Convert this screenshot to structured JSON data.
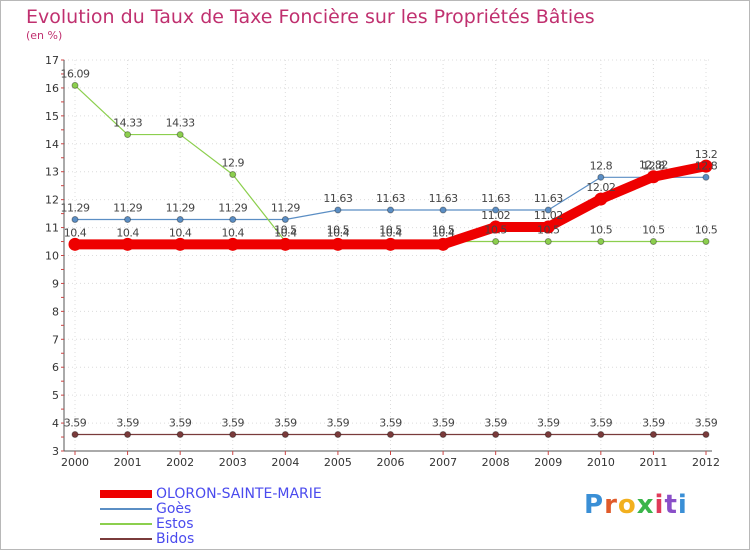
{
  "chart_data": {
    "type": "line",
    "title": "Evolution du Taux de Taxe Foncière sur les Propriétés Bâties",
    "ylabel": "(en %)",
    "xlabel": "",
    "ylim": [
      3,
      17
    ],
    "yticks": [
      3,
      4,
      5,
      6,
      7,
      8,
      9,
      10,
      11,
      12,
      13,
      14,
      15,
      16,
      17
    ],
    "categories": [
      "2000",
      "2001",
      "2002",
      "2003",
      "2004",
      "2005",
      "2006",
      "2007",
      "2008",
      "2009",
      "2010",
      "2011",
      "2012"
    ],
    "series": [
      {
        "name": "Goès",
        "color": "#5b8ec4",
        "values": [
          11.29,
          11.29,
          11.29,
          11.29,
          11.29,
          11.63,
          11.63,
          11.63,
          11.63,
          11.63,
          12.8,
          12.8,
          12.8
        ],
        "labels": [
          "11.29",
          "11.29",
          "11.29",
          "11.29",
          "11.29",
          "11.63",
          "11.63",
          "11.63",
          "11.63",
          "11.63",
          "12.8",
          "12.8",
          "12.8"
        ]
      },
      {
        "name": "Estos",
        "color": "#8ccf4e",
        "values": [
          16.09,
          14.33,
          14.33,
          12.9,
          10.5,
          10.5,
          10.5,
          10.5,
          10.5,
          10.5,
          10.5,
          10.5,
          10.5
        ],
        "labels": [
          "16.09",
          "14.33",
          "14.33",
          "12.9",
          "10.5",
          "10.5",
          "10.5",
          "10.5",
          "10.5",
          "10.5",
          "10.5",
          "10.5",
          "10.5"
        ]
      },
      {
        "name": "Bidos",
        "color": "#7a3b3b",
        "values": [
          3.59,
          3.59,
          3.59,
          3.59,
          3.59,
          3.59,
          3.59,
          3.59,
          3.59,
          3.59,
          3.59,
          3.59,
          3.59
        ],
        "labels": [
          "3.59",
          "3.59",
          "3.59",
          "3.59",
          "3.59",
          "3.59",
          "3.59",
          "3.59",
          "3.59",
          "3.59",
          "3.59",
          "3.59",
          "3.59"
        ]
      },
      {
        "name": "OLORON-SAINTE-MARIE",
        "color": "#ee0000",
        "values": [
          10.4,
          10.4,
          10.4,
          10.4,
          10.4,
          10.4,
          10.4,
          10.4,
          11.02,
          11.02,
          12.02,
          12.82,
          13.2
        ],
        "labels": [
          "10.4",
          "10.4",
          "10.4",
          "10.4",
          "10.4",
          "10.4",
          "10.4",
          "10.4",
          "11.02",
          "11.02",
          "12.02",
          "12.82",
          "13.2"
        ]
      }
    ],
    "legend": {
      "position": "bottom-left",
      "entries": [
        "OLORON-SAINTE-MARIE",
        "Goès",
        "Estos",
        "Bidos"
      ]
    }
  },
  "logo": {
    "text": "Proxiti",
    "colors": [
      "#3a8fd6",
      "#e05a2a",
      "#f2b01e",
      "#3ab54a",
      "#e03a5a",
      "#8a4fc8",
      "#3a8fd6"
    ]
  },
  "legend_colors": {
    "OLORON-SAINTE-MARIE": "#ee0000",
    "Goès": "#5b8ec4",
    "Estos": "#8ccf4e",
    "Bidos": "#7a3b3b",
    "label": "#4a4aee"
  }
}
